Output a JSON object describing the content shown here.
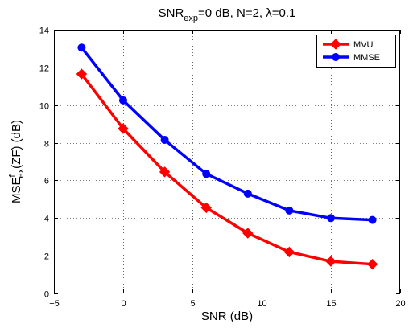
{
  "chart_data": {
    "type": "line",
    "title": {
      "base": "SNR",
      "subscript": "exp",
      "rest": "=0 dB, N=2, λ=0.1"
    },
    "xlabel": "SNR (dB)",
    "ylabel": {
      "base": "MSE",
      "superscript": "f",
      "subscript": "ex",
      "rest": "(ZF) (dB)"
    },
    "xlim": [
      -5,
      20
    ],
    "ylim": [
      0,
      14
    ],
    "xticks": [
      -5,
      0,
      5,
      10,
      15,
      20
    ],
    "yticks": [
      0,
      2,
      4,
      6,
      8,
      10,
      12,
      14
    ],
    "grid": true,
    "legend_position": "top-right",
    "x": [
      -3,
      0,
      3,
      6,
      9,
      12,
      15,
      18
    ],
    "series": [
      {
        "name": "MVU",
        "color": "#ff0000",
        "marker": "diamond",
        "values": [
          11.65,
          8.75,
          6.45,
          4.55,
          3.2,
          2.2,
          1.7,
          1.55
        ]
      },
      {
        "name": "MMSE",
        "color": "#0000ff",
        "marker": "circle",
        "values": [
          13.05,
          10.25,
          8.15,
          6.35,
          5.3,
          4.4,
          4.0,
          3.9
        ]
      }
    ]
  }
}
